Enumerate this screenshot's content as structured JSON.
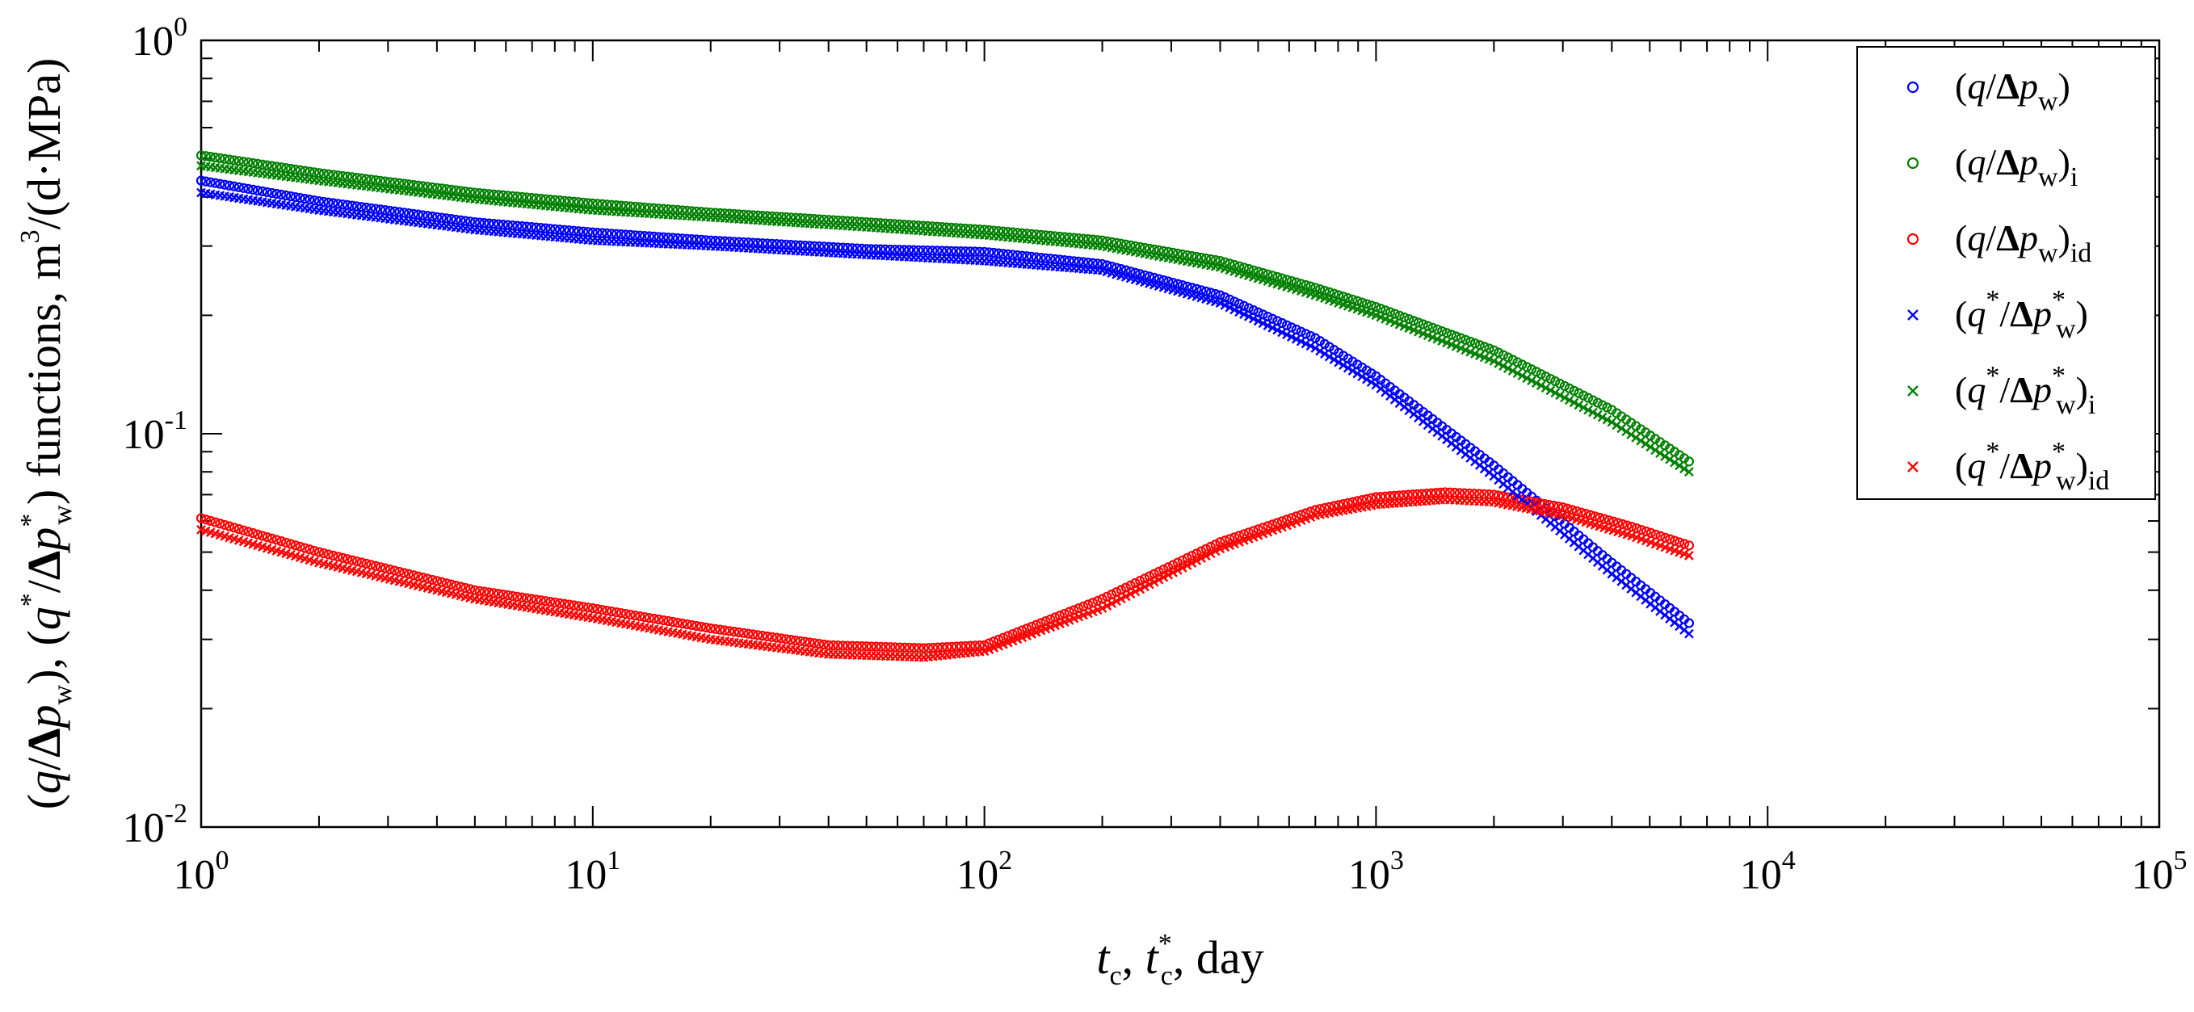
{
  "chart_data": {
    "type": "scatter",
    "x_scale": "log",
    "y_scale": "log",
    "xlim": [
      1,
      100000
    ],
    "ylim": [
      0.01,
      1
    ],
    "x_tick_labels": [
      {
        "base": "10",
        "exp": "0"
      },
      {
        "base": "10",
        "exp": "1"
      },
      {
        "base": "10",
        "exp": "2"
      },
      {
        "base": "10",
        "exp": "3"
      },
      {
        "base": "10",
        "exp": "4"
      },
      {
        "base": "10",
        "exp": "5"
      }
    ],
    "y_tick_labels": [
      {
        "base": "10",
        "exp": "-2"
      },
      {
        "base": "10",
        "exp": "-1"
      },
      {
        "base": "10",
        "exp": "0"
      }
    ],
    "xlabel": {
      "t": "t",
      "c": "c",
      "star": "*",
      "rest": ", day"
    },
    "ylabel": {
      "q": "q",
      "delta": "Δ",
      "p": "p",
      "w": "w",
      "star": "*",
      "functions": " functions, m",
      "cube": "3",
      "units": "/(d·MPa)"
    },
    "legend_position": "top-right",
    "series": [
      {
        "name": "q_dpw",
        "label_sub": "",
        "label_text": "(q/Δpw)",
        "marker": "circle",
        "color": "#0000ff",
        "points": [
          [
            1,
            0.44
          ],
          [
            2,
            0.39
          ],
          [
            5,
            0.345
          ],
          [
            10,
            0.325
          ],
          [
            20,
            0.31
          ],
          [
            50,
            0.295
          ],
          [
            100,
            0.29
          ],
          [
            200,
            0.27
          ],
          [
            400,
            0.225
          ],
          [
            700,
            0.175
          ],
          [
            1000,
            0.14
          ],
          [
            2000,
            0.083
          ],
          [
            4000,
            0.047
          ],
          [
            6300,
            0.033
          ]
        ]
      },
      {
        "name": "q_dpw_i",
        "label_sub": "i",
        "label_text": "(q/Δpw)i",
        "marker": "circle",
        "color": "#008000",
        "points": [
          [
            1,
            0.51
          ],
          [
            2,
            0.46
          ],
          [
            5,
            0.41
          ],
          [
            10,
            0.385
          ],
          [
            20,
            0.365
          ],
          [
            50,
            0.345
          ],
          [
            100,
            0.33
          ],
          [
            200,
            0.31
          ],
          [
            400,
            0.275
          ],
          [
            700,
            0.235
          ],
          [
            1000,
            0.21
          ],
          [
            2000,
            0.163
          ],
          [
            4000,
            0.115
          ],
          [
            6300,
            0.085
          ]
        ]
      },
      {
        "name": "q_dpw_id",
        "label_sub": "id",
        "label_text": "(q/Δpw)id",
        "marker": "circle",
        "color": "#ff0000",
        "points": [
          [
            1,
            0.061
          ],
          [
            2,
            0.05
          ],
          [
            5,
            0.04
          ],
          [
            10,
            0.036
          ],
          [
            20,
            0.032
          ],
          [
            40,
            0.029
          ],
          [
            70,
            0.0285
          ],
          [
            100,
            0.029
          ],
          [
            200,
            0.038
          ],
          [
            400,
            0.053
          ],
          [
            700,
            0.064
          ],
          [
            1000,
            0.069
          ],
          [
            1500,
            0.071
          ],
          [
            2000,
            0.07
          ],
          [
            3000,
            0.065
          ],
          [
            4500,
            0.058
          ],
          [
            6300,
            0.052
          ]
        ]
      },
      {
        "name": "qs_dpws",
        "label_sub": "",
        "label_text": "(q*/Δpw*)",
        "marker": "cross",
        "color": "#0000ff",
        "points": [
          [
            1,
            0.41
          ],
          [
            2,
            0.37
          ],
          [
            5,
            0.33
          ],
          [
            10,
            0.31
          ],
          [
            20,
            0.3
          ],
          [
            50,
            0.285
          ],
          [
            100,
            0.275
          ],
          [
            200,
            0.26
          ],
          [
            400,
            0.215
          ],
          [
            700,
            0.165
          ],
          [
            1000,
            0.133
          ],
          [
            2000,
            0.078
          ],
          [
            4000,
            0.044
          ],
          [
            6300,
            0.031
          ]
        ]
      },
      {
        "name": "qs_dpws_i",
        "label_sub": "i",
        "label_text": "(q*/Δpw*)i",
        "marker": "cross",
        "color": "#008000",
        "points": [
          [
            1,
            0.48
          ],
          [
            2,
            0.44
          ],
          [
            5,
            0.395
          ],
          [
            10,
            0.37
          ],
          [
            20,
            0.355
          ],
          [
            50,
            0.335
          ],
          [
            100,
            0.32
          ],
          [
            200,
            0.3
          ],
          [
            400,
            0.265
          ],
          [
            700,
            0.225
          ],
          [
            1000,
            0.2
          ],
          [
            2000,
            0.153
          ],
          [
            4000,
            0.107
          ],
          [
            6300,
            0.08
          ]
        ]
      },
      {
        "name": "qs_dpws_id",
        "label_sub": "id",
        "label_text": "(q*/Δpw*)id",
        "marker": "cross",
        "color": "#ff0000",
        "points": [
          [
            1,
            0.057
          ],
          [
            2,
            0.047
          ],
          [
            5,
            0.038
          ],
          [
            10,
            0.034
          ],
          [
            20,
            0.03
          ],
          [
            40,
            0.0275
          ],
          [
            70,
            0.027
          ],
          [
            100,
            0.028
          ],
          [
            200,
            0.036
          ],
          [
            400,
            0.051
          ],
          [
            700,
            0.062
          ],
          [
            1000,
            0.066
          ],
          [
            1500,
            0.068
          ],
          [
            2000,
            0.067
          ],
          [
            3000,
            0.062
          ],
          [
            4500,
            0.055
          ],
          [
            6300,
            0.049
          ]
        ]
      }
    ]
  }
}
